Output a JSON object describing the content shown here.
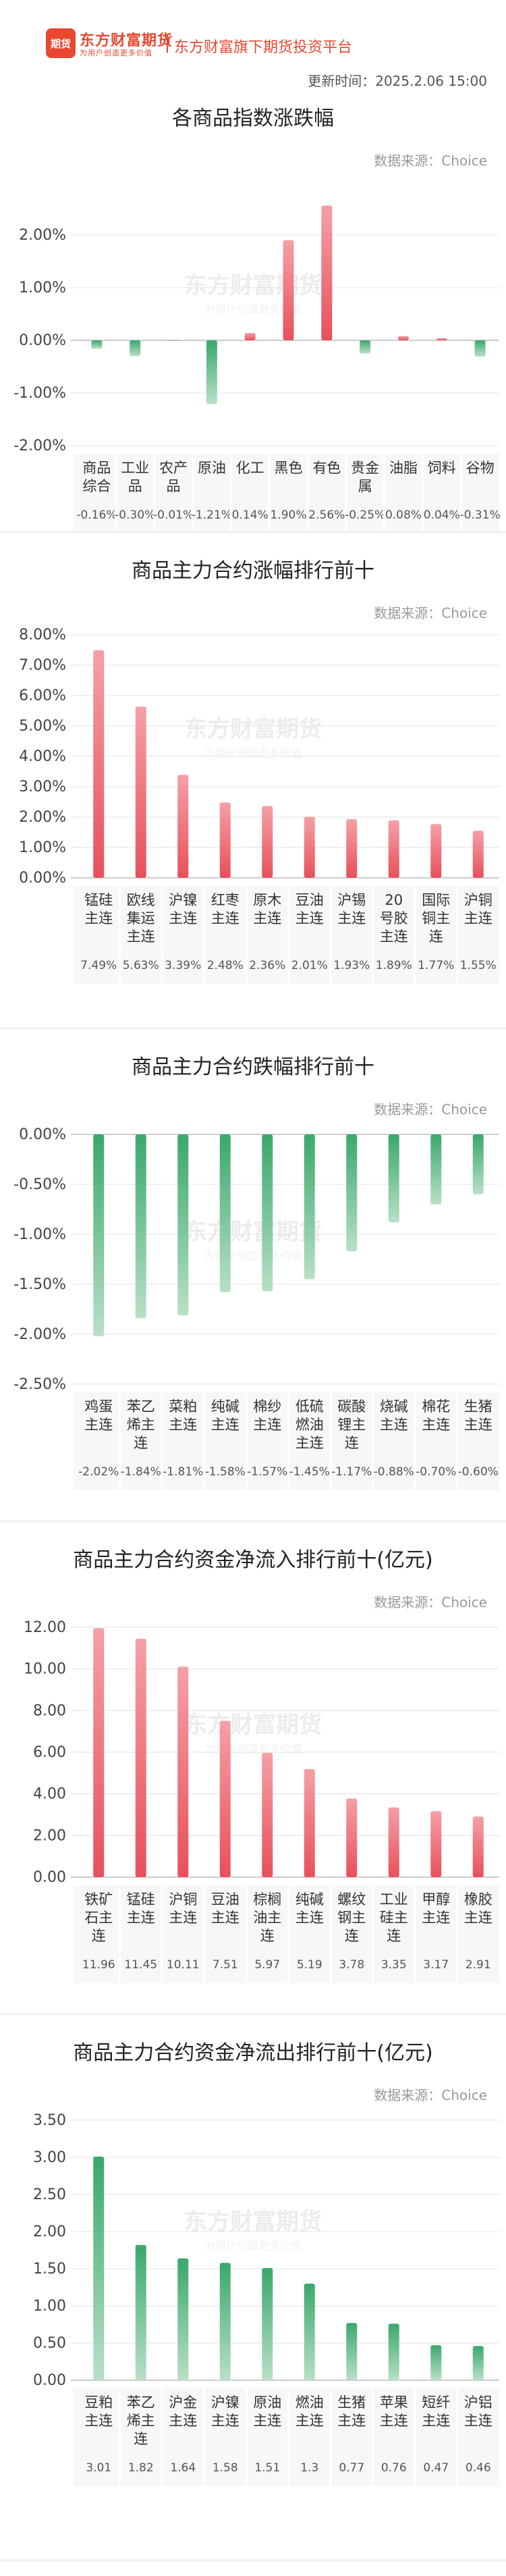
{
  "header": {
    "logo_badge": "期货",
    "logo_name": "东方财富期货",
    "logo_slogan": "为用户创造更多价值",
    "platform": "东方财富旗下期货投资平台",
    "updated": "更新时间：2025.2.06 15:00"
  },
  "watermark": {
    "name": "东方财富期货",
    "slogan": "为用户创造更多价值"
  },
  "chart_data": [
    {
      "type": "bar",
      "title": "各商品指数涨跌幅",
      "source": "数据来源：Choice",
      "ylim": [
        -2.0,
        3.0
      ],
      "ytick_step": 1.0,
      "ytick_decimals": 2,
      "unit": "%",
      "categories": [
        "商品综合",
        "工业品",
        "农产品",
        "原油",
        "化工",
        "黑色",
        "有色",
        "贵金属",
        "油脂",
        "饲料",
        "谷物"
      ],
      "values": [
        -0.16,
        -0.3,
        -0.01,
        -1.21,
        0.14,
        1.9,
        2.56,
        -0.25,
        0.08,
        0.04,
        -0.31
      ],
      "value_labels": [
        "-0.16%",
        "-0.30%",
        "-0.01%",
        "-1.21%",
        "0.14%",
        "1.90%",
        "2.56%",
        "-0.25%",
        "0.08%",
        "0.04%",
        "-0.31%"
      ],
      "colors": {
        "up": "#e8505b",
        "down": "#3aa86b"
      },
      "grid": true
    },
    {
      "type": "bar",
      "title": "商品主力合约涨幅排行前十",
      "source": "数据来源：Choice",
      "ylim": [
        0,
        8.0
      ],
      "ytick_step": 1.0,
      "ytick_decimals": 2,
      "unit": "%",
      "categories": [
        "锰硅主连",
        "欧线集运主连",
        "沪镍主连",
        "红枣主连",
        "原木主连",
        "豆油主连",
        "沪锡主连",
        "20号胶主连",
        "国际铜主连",
        "沪铜主连"
      ],
      "values": [
        7.49,
        5.63,
        3.39,
        2.48,
        2.36,
        2.01,
        1.93,
        1.89,
        1.77,
        1.55
      ],
      "value_labels": [
        "7.49%",
        "5.63%",
        "3.39%",
        "2.48%",
        "2.36%",
        "2.01%",
        "1.93%",
        "1.89%",
        "1.77%",
        "1.55%"
      ],
      "colors": {
        "up": "#e8505b",
        "down": "#3aa86b"
      },
      "grid": true
    },
    {
      "type": "bar",
      "title": "商品主力合约跌幅排行前十",
      "source": "数据来源：Choice",
      "ylim": [
        -2.5,
        0
      ],
      "ytick_step": 0.5,
      "ytick_decimals": 2,
      "unit": "%",
      "categories": [
        "鸡蛋主连",
        "苯乙烯主连",
        "菜粕主连",
        "纯碱主连",
        "棉纱主连",
        "低硫燃油主连",
        "碳酸锂主连",
        "烧碱主连",
        "棉花主连",
        "生猪主连"
      ],
      "values": [
        -2.02,
        -1.84,
        -1.81,
        -1.58,
        -1.57,
        -1.45,
        -1.17,
        -0.88,
        -0.7,
        -0.6
      ],
      "value_labels": [
        "-2.02%",
        "-1.84%",
        "-1.81%",
        "-1.58%",
        "-1.57%",
        "-1.45%",
        "-1.17%",
        "-0.88%",
        "-0.70%",
        "-0.60%"
      ],
      "colors": {
        "up": "#e8505b",
        "down": "#3aa86b"
      },
      "grid": true
    },
    {
      "type": "bar",
      "title": "商品主力合约资金净流入排行前十(亿元)",
      "source": "数据来源：Choice",
      "ylim": [
        0,
        12.0
      ],
      "ytick_step": 2.0,
      "ytick_decimals": 2,
      "unit": "",
      "categories": [
        "铁矿石主连",
        "锰硅主连",
        "沪铜主连",
        "豆油主连",
        "棕榈油主连",
        "纯碱主连",
        "螺纹钢主连",
        "工业硅主连",
        "甲醇主连",
        "橡胶主连"
      ],
      "values": [
        11.96,
        11.45,
        10.11,
        7.51,
        5.97,
        5.19,
        3.78,
        3.35,
        3.17,
        2.91
      ],
      "value_labels": [
        "11.96",
        "11.45",
        "10.11",
        "7.51",
        "5.97",
        "5.19",
        "3.78",
        "3.35",
        "3.17",
        "2.91"
      ],
      "colors": {
        "up": "#e8505b",
        "down": "#3aa86b"
      },
      "grid": true
    },
    {
      "type": "bar",
      "title": "商品主力合约资金净流出排行前十(亿元)",
      "source": "数据来源：Choice",
      "ylim": [
        0,
        3.5
      ],
      "ytick_step": 0.5,
      "ytick_decimals": 2,
      "unit": "",
      "categories": [
        "豆粕主连",
        "苯乙烯主连",
        "沪金主连",
        "沪镍主连",
        "原油主连",
        "燃油主连",
        "生猪主连",
        "苹果主连",
        "短纤主连",
        "沪铝主连"
      ],
      "values": [
        3.01,
        1.82,
        1.64,
        1.58,
        1.51,
        1.3,
        0.77,
        0.76,
        0.47,
        0.46
      ],
      "value_labels": [
        "3.01",
        "1.82",
        "1.64",
        "1.58",
        "1.51",
        "1.3",
        "0.77",
        "0.76",
        "0.47",
        "0.46"
      ],
      "colors": {
        "up": "#3aa86b",
        "down": "#3aa86b"
      },
      "grid": true
    }
  ]
}
